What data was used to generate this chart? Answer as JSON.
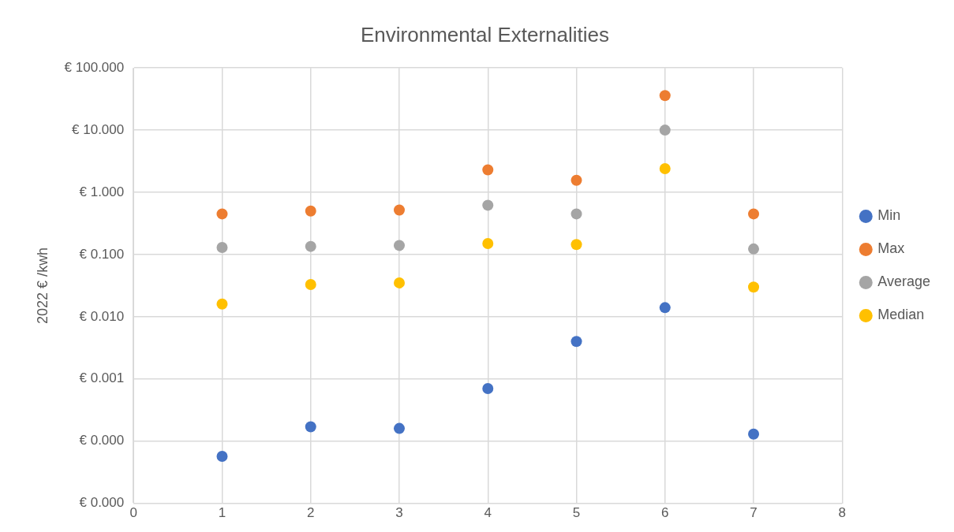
{
  "chart_data": {
    "type": "scatter",
    "title": "Environmental Externalities",
    "ylabel": "2022 € /kwh",
    "x": [
      1,
      2,
      3,
      4,
      5,
      6,
      7
    ],
    "series": [
      {
        "name": "Min",
        "color": "#4472c4",
        "values": [
          5.7e-05,
          0.00017,
          0.00016,
          0.0007,
          0.004,
          0.014,
          0.00013
        ]
      },
      {
        "name": "Max",
        "color": "#ed7d31",
        "values": [
          0.45,
          0.5,
          0.52,
          2.3,
          1.56,
          36,
          0.45
        ]
      },
      {
        "name": "Average",
        "color": "#a5a5a5",
        "values": [
          0.13,
          0.135,
          0.14,
          0.62,
          0.45,
          10,
          0.123
        ]
      },
      {
        "name": "Median",
        "color": "#ffc000",
        "values": [
          0.016,
          0.033,
          0.035,
          0.15,
          0.145,
          2.4,
          0.03
        ]
      }
    ],
    "xlim": [
      0,
      8
    ],
    "xticks": [
      0,
      1,
      2,
      3,
      4,
      5,
      6,
      7,
      8
    ],
    "ylim": [
      1e-05,
      100
    ],
    "yticks": [
      {
        "value": 1e-05,
        "label": "€ 0.000"
      },
      {
        "value": 0.0001,
        "label": "€ 0.000"
      },
      {
        "value": 0.001,
        "label": "€ 0.001"
      },
      {
        "value": 0.01,
        "label": "€ 0.010"
      },
      {
        "value": 0.1,
        "label": "€ 0.100"
      },
      {
        "value": 1,
        "label": "€ 1.000"
      },
      {
        "value": 10,
        "label": "€ 10.000"
      },
      {
        "value": 100,
        "label": "€ 100.000"
      }
    ],
    "log": "y",
    "grid": true,
    "legend": "right",
    "marker": "circle"
  }
}
